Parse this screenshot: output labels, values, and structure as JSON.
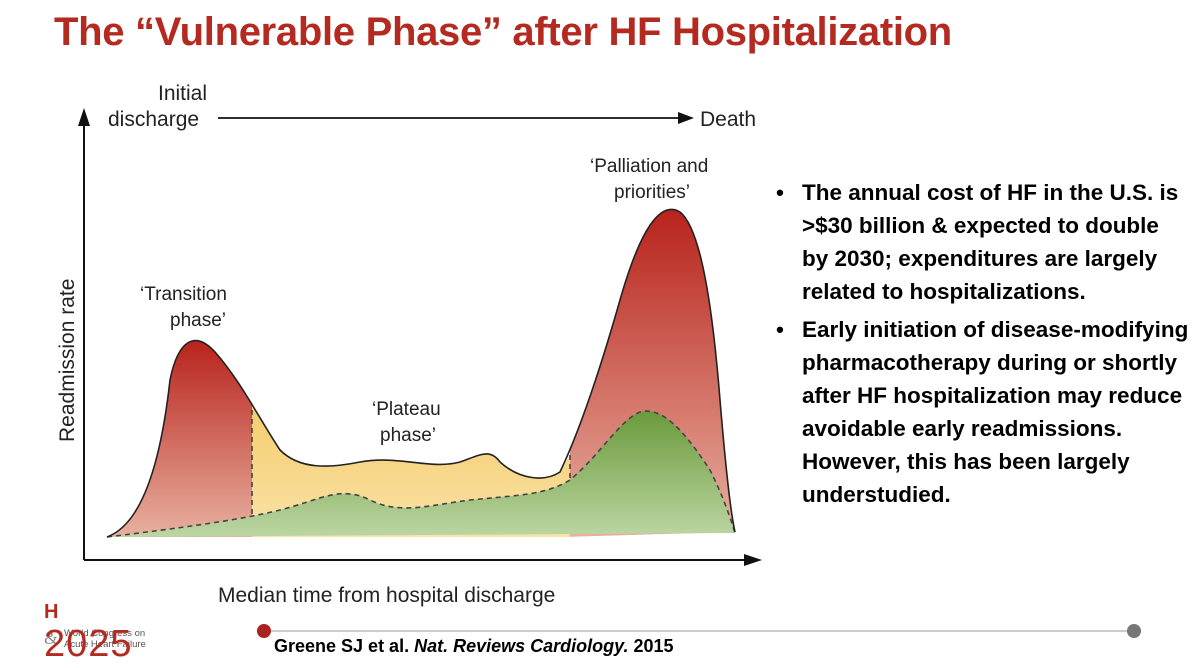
{
  "slide": {
    "title": "The “Vulnerable Phase” after HF Hospitalization"
  },
  "diagram": {
    "timeline_start": [
      "Initial",
      "discharge"
    ],
    "timeline_end": "Death",
    "y_axis_label": "Readmission rate",
    "x_axis_label": "Median time from hospital discharge",
    "phase_transition": [
      "‘Transition",
      "phase’"
    ],
    "phase_plateau": [
      "‘Plateau",
      "phase’"
    ],
    "phase_palliation": [
      "‘Palliation and",
      "priorities’"
    ],
    "colors": {
      "transition": "#c0392b",
      "plateau": "#f2c14e",
      "green": "#6a9a3a"
    }
  },
  "bullets": [
    "The annual cost of HF in the U.S. is >$30 billion & expected to double by 2030; expenditures are largely related to hospitalizations.",
    "Early initiation of disease-modifying pharmacotherapy during or shortly after HF hospitalization may reduce avoidable early readmissions. However, this has been largely understudied."
  ],
  "bullet_symbol": "•",
  "citation": {
    "authors": "Greene SJ et al.",
    "journal": "Nat. Reviews Cardiology.",
    "year": "2015"
  },
  "logo": {
    "year": "2025",
    "line1": "World Congress on",
    "line2": "Acute Heart Failure",
    "ampersand": "&"
  }
}
